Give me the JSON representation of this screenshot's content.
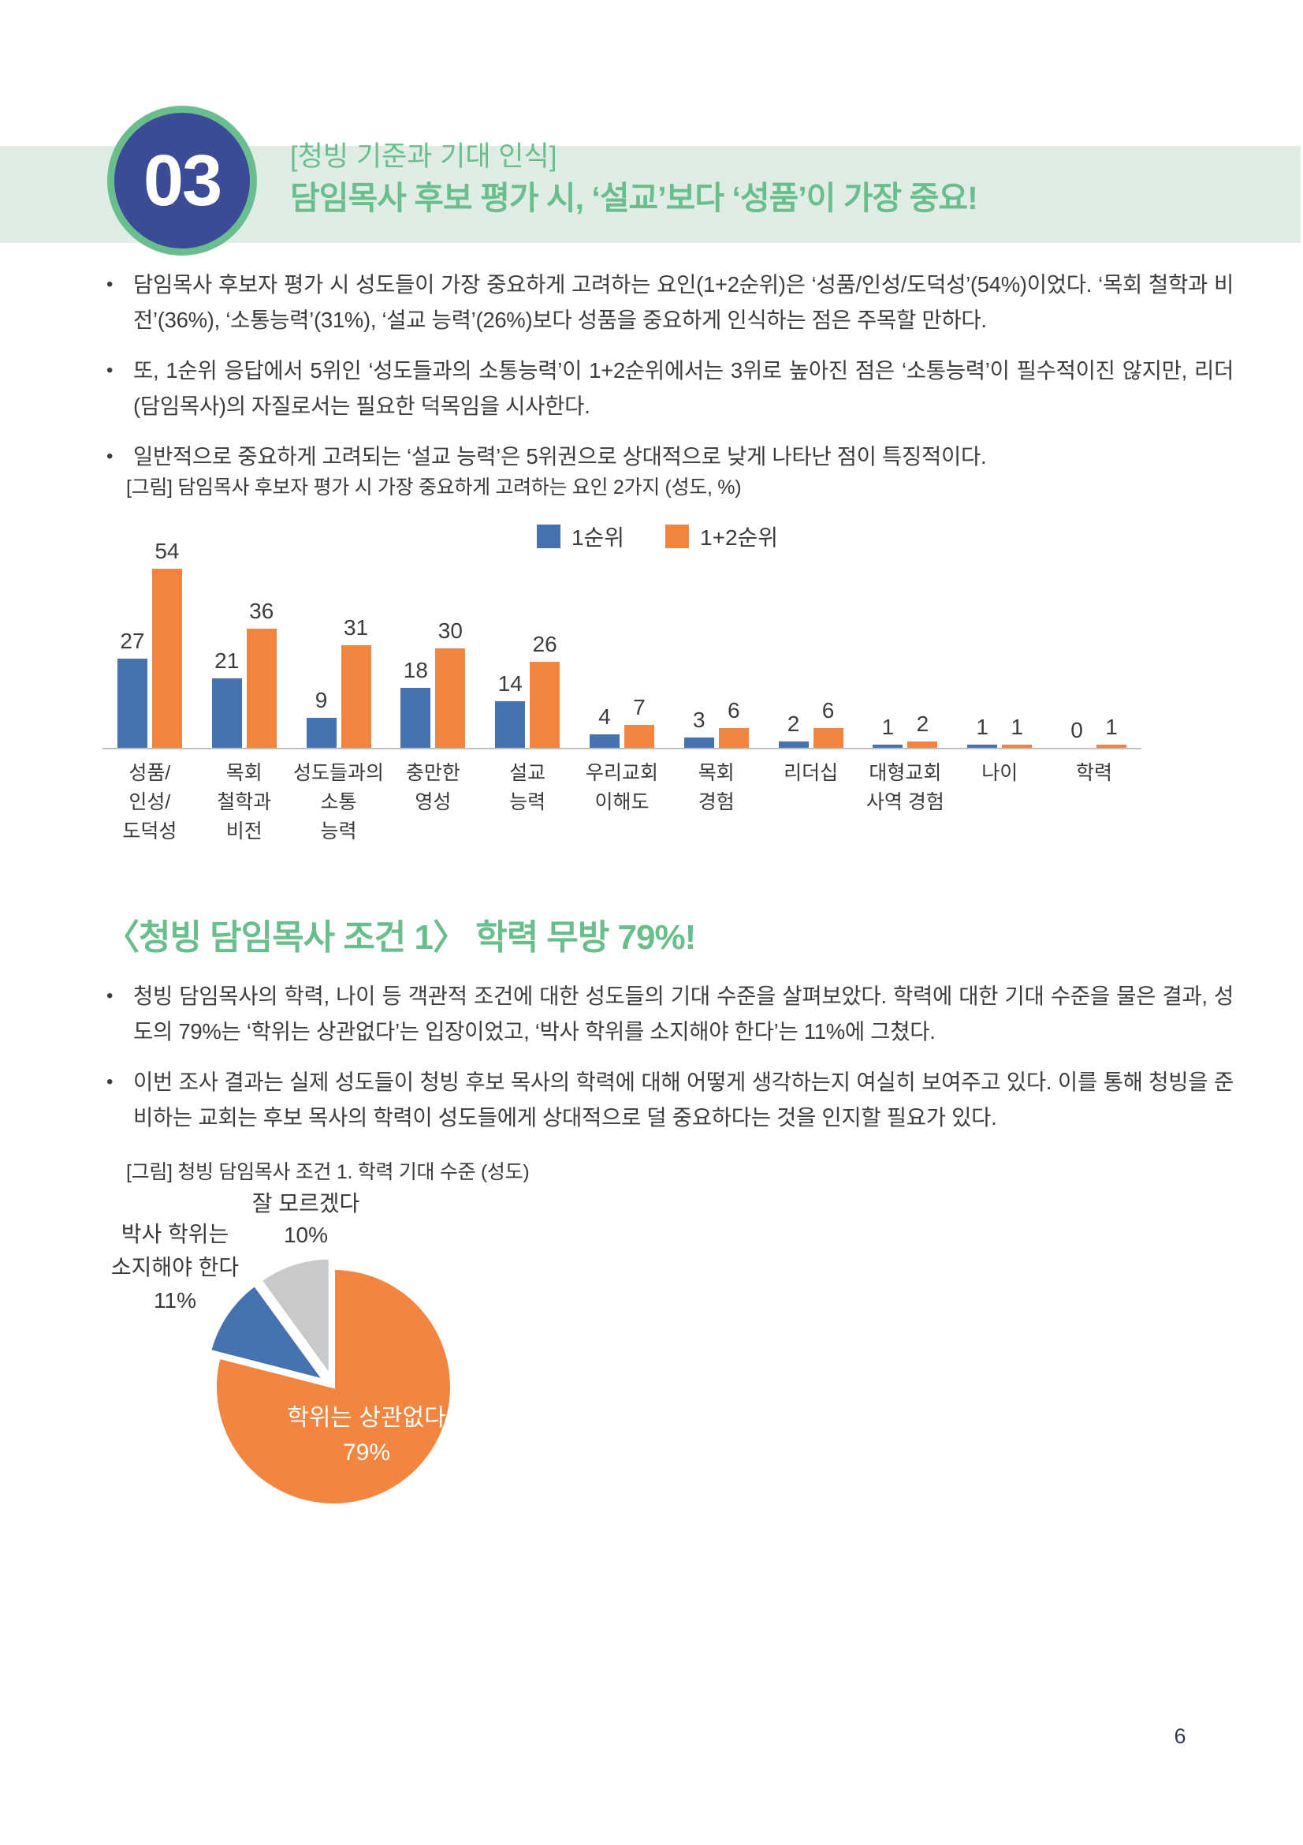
{
  "page": {
    "number": "6",
    "bullet_char": "•"
  },
  "colors": {
    "accent_green": "#6ABE8E",
    "banner_bg": "#DFEDE4",
    "badge_navy": "#3B4B98",
    "series1_blue": "#4673B0",
    "series2_orange": "#F2853F",
    "pie_gray": "#C9C9C9",
    "axis_gray": "#BFBFBF"
  },
  "header": {
    "number": "03",
    "kicker": "[청빙 기준과 기대 인식]",
    "headline": "담임목사 후보 평가 시, ‘설교’보다 ‘성품’이 가장 중요!"
  },
  "section1": {
    "bullets": [
      "담임목사 후보자 평가 시 성도들이 가장 중요하게 고려하는 요인(1+2순위)은 ‘성품/인성/도덕성’(54%)이었다. ‘목회 철학과 비전’(36%), ‘소통능력’(31%), ‘설교 능력’(26%)보다 성품을 중요하게 인식하는 점은 주목할 만하다.",
      "또, 1순위 응답에서 5위인 ‘성도들과의 소통능력’이 1+2순위에서는 3위로 높아진 점은 ‘소통능력’이 필수적이진 않지만, 리더(담임목사)의 자질로서는 필요한 덕목임을 시사한다.",
      "일반적으로 중요하게 고려되는 ‘설교 능력’은 5위권으로 상대적으로 낮게 나타난 점이 특징적이다."
    ]
  },
  "section2": {
    "heading": "〈청빙 담임목사 조건 1〉 학력 무방 79%!",
    "bullets": [
      "청빙 담임목사의 학력, 나이 등 객관적 조건에 대한 성도들의 기대 수준을 살펴보았다. 학력에 대한 기대 수준을 물은 결과, 성도의 79%는 ‘학위는 상관없다’는 입장이었고, ‘박사 학위를 소지해야 한다’는 11%에 그쳤다.",
      "이번 조사 결과는 실제 성도들이 청빙 후보 목사의 학력에 대해 어떻게 생각하는지 여실히 보여주고 있다. 이를 통해 청빙을 준비하는 교회는 후보 목사의 학력이 성도들에게 상대적으로 덜 중요하다는 것을 인지할 필요가 있다."
    ]
  },
  "chart_data": [
    {
      "type": "bar",
      "title": "[그림] 담임목사 후보자 평가 시 가장 중요하게 고려하는 요인 2가지 (성도, %)",
      "categories": [
        "성품/인성/도덕성",
        "목회 철학과 비전",
        "성도들과의 소통 능력",
        "충만한 영성",
        "설교 능력",
        "우리교회 이해도",
        "목회 경험",
        "리더십",
        "대형교회 사역 경험",
        "나이",
        "학력"
      ],
      "category_lines": [
        [
          "성품/",
          "인성/",
          "도덕성"
        ],
        [
          "목회",
          "철학과",
          "비전"
        ],
        [
          "성도들과의",
          "소통",
          "능력"
        ],
        [
          "충만한",
          "영성"
        ],
        [
          "설교",
          "능력"
        ],
        [
          "우리교회",
          "이해도"
        ],
        [
          "목회",
          "경험"
        ],
        [
          "리더십"
        ],
        [
          "대형교회",
          "사역 경험"
        ],
        [
          "나이"
        ],
        [
          "학력"
        ]
      ],
      "series": [
        {
          "name": "1순위",
          "color": "#4673B0",
          "values": [
            27,
            21,
            9,
            18,
            14,
            4,
            3,
            2,
            1,
            1,
            0
          ]
        },
        {
          "name": "1+2순위",
          "color": "#F2853F",
          "values": [
            54,
            36,
            31,
            30,
            26,
            7,
            6,
            6,
            2,
            1,
            1
          ]
        }
      ],
      "ylim": [
        0,
        60
      ],
      "grid": false,
      "legend_position": "top",
      "value_labels": true,
      "xlabel": "",
      "ylabel": ""
    },
    {
      "type": "pie",
      "title": "[그림] 청빙 담임목사 조건 1. 학력 기대 수준 (성도)",
      "start_angle_deg": 0,
      "direction": "clockwise",
      "slices": [
        {
          "label": "학위는 상관없다",
          "value": 79,
          "color": "#F2853F",
          "exploded": false,
          "label_position": "inside",
          "label_lines": [
            "학위는 상관없다"
          ],
          "pct_label": "79%"
        },
        {
          "label": "박사 학위는 소지해야 한다",
          "value": 11,
          "color": "#4673B0",
          "exploded": true,
          "label_position": "outside-left",
          "label_lines": [
            "박사 학위는",
            "소지해야 한다"
          ],
          "pct_label": "11%"
        },
        {
          "label": "잘 모르겠다",
          "value": 10,
          "color": "#C9C9C9",
          "exploded": true,
          "label_position": "outside-top",
          "label_lines": [
            "잘 모르겠다"
          ],
          "pct_label": "10%"
        }
      ]
    }
  ]
}
